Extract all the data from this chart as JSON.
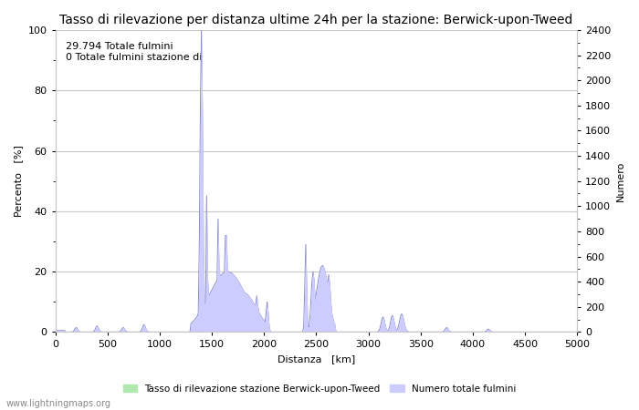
{
  "title": "Tasso di rilevazione per distanza ultime 24h per la stazione: Berwick-upon-Tweed",
  "xlabel": "Distanza   [km]",
  "ylabel_left": "Percento   [%]",
  "ylabel_right": "Numero",
  "annotation_line1": "29.794 Totale fulmini",
  "annotation_line2": "0 Totale fulmini stazione di",
  "xlim": [
    0,
    5000
  ],
  "ylim_left": [
    0,
    100
  ],
  "ylim_right": [
    0,
    2400
  ],
  "xticks": [
    0,
    500,
    1000,
    1500,
    2000,
    2500,
    3000,
    3500,
    4000,
    4500,
    5000
  ],
  "yticks_left": [
    0,
    20,
    40,
    60,
    80,
    100
  ],
  "yticks_right": [
    0,
    200,
    400,
    600,
    800,
    1000,
    1200,
    1400,
    1600,
    1800,
    2000,
    2200,
    2400
  ],
  "legend_label_green": "Tasso di rilevazione stazione Berwick-upon-Tweed",
  "legend_label_blue": "Numero totale fulmini",
  "fill_color_blue": "#ccccff",
  "fill_color_green": "#b0e8b0",
  "line_color": "#8888cc",
  "watermark": "www.lightningmaps.org",
  "background_color": "#ffffff",
  "grid_color": "#c8c8c8",
  "title_fontsize": 10,
  "axis_fontsize": 8,
  "tick_fontsize": 8,
  "annotation_fontsize": 8
}
